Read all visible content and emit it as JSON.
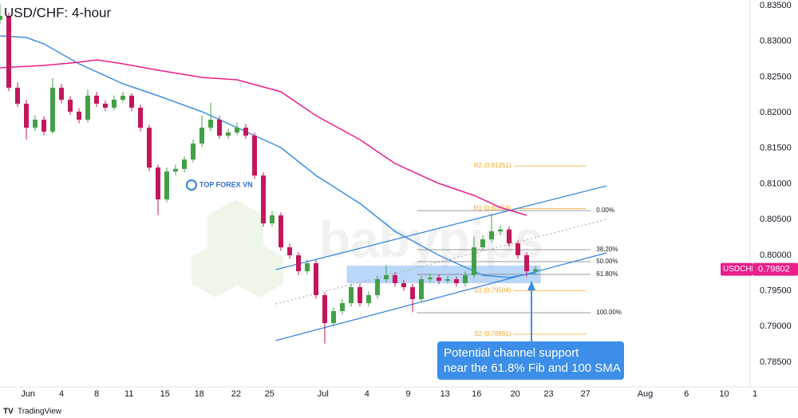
{
  "chart_data": {
    "type": "candlestick",
    "title": "USD/CHF: 4-hour",
    "footer": "TradingView",
    "watermarks": [
      "TOP FOREX VN",
      "babypips"
    ],
    "up_color": "#43a047",
    "down_color": "#c2185b",
    "xlim": [
      0,
      87
    ],
    "xticks": [
      {
        "value": 3.2,
        "label": "Jun"
      },
      {
        "value": 7.0,
        "label": "4"
      },
      {
        "value": 11.0,
        "label": "8"
      },
      {
        "value": 14.7,
        "label": "11"
      },
      {
        "value": 18.8,
        "label": "15"
      },
      {
        "value": 22.7,
        "label": "18"
      },
      {
        "value": 26.9,
        "label": "22"
      },
      {
        "value": 30.7,
        "label": "25"
      },
      {
        "value": 36.8,
        "label": "Jul"
      },
      {
        "value": 41.8,
        "label": "4"
      },
      {
        "value": 46.5,
        "label": "9"
      },
      {
        "value": 50.7,
        "label": "13"
      },
      {
        "value": 54.3,
        "label": "16"
      },
      {
        "value": 58.7,
        "label": "20"
      },
      {
        "value": 62.5,
        "label": "23"
      },
      {
        "value": 66.7,
        "label": "27"
      },
      {
        "value": 73.5,
        "label": "Aug"
      },
      {
        "value": 78.2,
        "label": "6"
      },
      {
        "value": 82.5,
        "label": "10"
      },
      {
        "value": 86.0,
        "label": "1"
      }
    ],
    "ylim": [
      0.78153,
      0.83578
    ],
    "yticks": [
      {
        "value": 0.835,
        "label": "0.83500"
      },
      {
        "value": 0.83,
        "label": "0.83000"
      },
      {
        "value": 0.825,
        "label": "0.82500"
      },
      {
        "value": 0.82,
        "label": "0.82000"
      },
      {
        "value": 0.815,
        "label": "0.81500"
      },
      {
        "value": 0.81,
        "label": "0.81000"
      },
      {
        "value": 0.805,
        "label": "0.80500"
      },
      {
        "value": 0.8,
        "label": "0.80000"
      },
      {
        "value": 0.795,
        "label": "0.79500"
      },
      {
        "value": 0.79,
        "label": "0.79000"
      },
      {
        "value": 0.785,
        "label": "0.78500"
      }
    ],
    "grid": false,
    "ohlc": {
      "x": [
        0,
        1,
        2,
        3,
        4,
        5,
        6,
        7,
        8,
        9,
        10,
        11,
        12,
        13,
        14,
        15,
        16,
        17,
        18,
        19,
        20,
        21,
        22,
        23,
        24,
        25,
        26,
        27,
        28,
        29,
        30,
        31,
        32,
        33,
        34,
        35,
        36,
        37,
        38,
        39,
        40,
        41,
        42,
        43,
        44,
        45,
        46,
        47,
        48,
        49,
        50,
        51,
        52,
        53,
        54,
        55,
        56,
        57,
        58,
        59,
        60,
        61
      ],
      "open": [
        0.833,
        0.83354,
        0.82348,
        0.82124,
        0.81788,
        0.819,
        0.81732,
        0.82348,
        0.8218,
        0.82012,
        0.819,
        0.82236,
        0.82124,
        0.82068,
        0.8218,
        0.82236,
        0.82068,
        0.81788,
        0.81229,
        0.80782,
        0.81173,
        0.8121,
        0.81341,
        0.81565,
        0.81788,
        0.819,
        0.81676,
        0.8172,
        0.81788,
        0.81676,
        0.81117,
        0.80446,
        0.80558,
        0.8011,
        0.79999,
        0.79775,
        0.79887,
        0.79439,
        0.79048,
        0.79216,
        0.79327,
        0.79551,
        0.79327,
        0.79439,
        0.79663,
        0.79719,
        0.79607,
        0.79551,
        0.79383,
        0.79663,
        0.79685,
        0.79641,
        0.79663,
        0.79607,
        0.79719,
        0.8011,
        0.80222,
        0.80334,
        0.8036,
        0.80166,
        0.79999,
        0.79775
      ],
      "high": [
        0.8352,
        0.834,
        0.8242,
        0.8218,
        0.8196,
        0.8195,
        0.8248,
        0.824,
        0.8223,
        0.8206,
        0.8232,
        0.8229,
        0.8217,
        0.8224,
        0.8229,
        0.8227,
        0.8211,
        0.8183,
        0.8127,
        0.8123,
        0.8127,
        0.8139,
        0.8162,
        0.8196,
        0.8214,
        0.8195,
        0.8177,
        0.8186,
        0.8184,
        0.8172,
        0.8116,
        0.8062,
        0.806,
        0.8016,
        0.8004,
        0.7994,
        0.7993,
        0.7948,
        0.7927,
        0.7938,
        0.796,
        0.796,
        0.7949,
        0.7971,
        0.7986,
        0.7976,
        0.7965,
        0.796,
        0.7971,
        0.7974,
        0.7973,
        0.7971,
        0.797,
        0.7977,
        0.8026,
        0.8028,
        0.8058,
        0.8042,
        0.804,
        0.8021,
        0.8004,
        0.7985
      ],
      "low": [
        0.8325,
        0.823,
        0.8208,
        0.8162,
        0.8174,
        0.8168,
        0.817,
        0.8213,
        0.8197,
        0.8185,
        0.8186,
        0.8208,
        0.8202,
        0.8203,
        0.8214,
        0.8202,
        0.8174,
        0.8118,
        0.8056,
        0.8074,
        0.8112,
        0.8116,
        0.813,
        0.8152,
        0.8174,
        0.8163,
        0.8163,
        0.8168,
        0.8163,
        0.8107,
        0.804,
        0.804,
        0.8006,
        0.7995,
        0.7972,
        0.7973,
        0.7939,
        0.7876,
        0.79,
        0.7917,
        0.7928,
        0.7928,
        0.7928,
        0.7939,
        0.7962,
        0.7956,
        0.795,
        0.792,
        0.7934,
        0.7962,
        0.7959,
        0.796,
        0.7956,
        0.7956,
        0.7968,
        0.8006,
        0.8018,
        0.8028,
        0.8012,
        0.7995,
        0.797,
        0.7972
      ],
      "close": [
        0.83354,
        0.82348,
        0.82124,
        0.81788,
        0.819,
        0.81732,
        0.82348,
        0.8218,
        0.82012,
        0.819,
        0.82236,
        0.82124,
        0.82068,
        0.8218,
        0.82236,
        0.82068,
        0.81788,
        0.81229,
        0.80782,
        0.81173,
        0.8121,
        0.81341,
        0.81565,
        0.81788,
        0.819,
        0.81676,
        0.8172,
        0.81788,
        0.81676,
        0.81117,
        0.80446,
        0.80558,
        0.8011,
        0.79999,
        0.79775,
        0.79887,
        0.79439,
        0.79048,
        0.79216,
        0.79327,
        0.79551,
        0.79327,
        0.79439,
        0.79663,
        0.79719,
        0.79607,
        0.79551,
        0.79383,
        0.79663,
        0.79685,
        0.79641,
        0.79663,
        0.79607,
        0.79719,
        0.8011,
        0.80222,
        0.80334,
        0.8036,
        0.80166,
        0.79999,
        0.79775,
        0.79802
      ]
    },
    "lines": [
      {
        "color": "#3d8fe0",
        "x": [
          0,
          3,
          5,
          9,
          14,
          18,
          23,
          27,
          32,
          36,
          41,
          45,
          50,
          55,
          58,
          61
        ],
        "values": [
          0.83075,
          0.83052,
          0.82963,
          0.82683,
          0.82404,
          0.82236,
          0.82012,
          0.81788,
          0.81509,
          0.81117,
          0.80726,
          0.80334,
          0.79999,
          0.79719,
          0.79686,
          0.79753
        ]
      },
      {
        "color": "#e91e8c",
        "x": [
          0,
          5,
          9,
          11,
          14,
          18,
          23,
          27,
          32,
          36,
          41,
          45,
          50,
          54,
          57,
          60
        ],
        "values": [
          0.82627,
          0.82661,
          0.82706,
          0.82739,
          0.82683,
          0.82594,
          0.82493,
          0.82459,
          0.82292,
          0.81956,
          0.8162,
          0.81285,
          0.81005,
          0.80838,
          0.8067,
          0.80558
        ]
      }
    ],
    "channel": [
      {
        "color": "#2f7fe0",
        "dashed": false,
        "x": [
          31.4,
          69.1
        ],
        "values": [
          0.79797,
          0.80972
        ]
      },
      {
        "color": "#b0b0b0",
        "dashed": true,
        "x": [
          31.4,
          69.1
        ],
        "values": [
          0.79316,
          0.80502
        ]
      },
      {
        "color": "#2f7fe0",
        "dashed": false,
        "x": [
          31.4,
          69.1
        ],
        "values": [
          0.78802,
          0.80032
        ]
      }
    ],
    "zone": {
      "color": "#9cc5f5",
      "x": [
        39.5,
        61.6
      ],
      "values": [
        0.79853,
        0.79607
      ]
    },
    "fib": {
      "color": "#7a7a7a",
      "x": [
        47.5,
        67.3
      ],
      "levels": [
        {
          "value": 0.80625,
          "label": "0.00%"
        },
        {
          "value": 0.80077,
          "label": "38.20%"
        },
        {
          "value": 0.79909,
          "label": "50.00%"
        },
        {
          "value": 0.7973,
          "label": "61.80%"
        },
        {
          "value": 0.79193,
          "label": "100.00%"
        }
      ]
    },
    "pivots": {
      "color": "#f5a623",
      "x": [
        58.5,
        66.8
      ],
      "levels": [
        {
          "value": 0.81251,
          "label": "R2 (0.81251)"
        },
        {
          "value": 0.80653,
          "label": "R1 (0.80653)"
        },
        {
          "value": 0.79504,
          "label": "S1 (0.79504)"
        },
        {
          "value": 0.78891,
          "label": "S2 (0.78891)"
        }
      ]
    },
    "last_price": {
      "symbol": "USDCHF",
      "color": "#e91e8c"
    },
    "annotation": [
      "Potential channel support",
      "near the 61.8% Fib and 100 SMA"
    ]
  }
}
